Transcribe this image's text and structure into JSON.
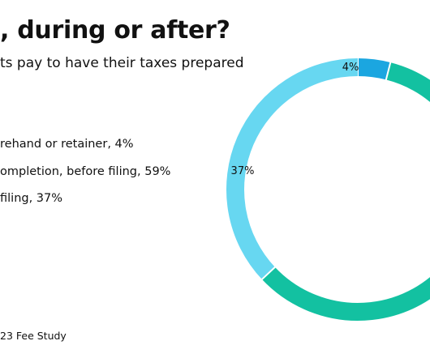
{
  "header": {
    "title": ", during or after?",
    "subtitle": "ts pay to have their taxes prepared"
  },
  "legend": {
    "items": [
      {
        "label": "rehand or retainer, 4%"
      },
      {
        "label": "ompletion, before filing, 59%"
      },
      {
        "label": " filing, 37%"
      }
    ]
  },
  "footer": {
    "source": "23 Fee Study"
  },
  "colors": {
    "slice_beforehand": "#1ba6e0",
    "slice_before_filing": "#13c1a1",
    "slice_after_filing": "#67d7f1"
  },
  "chart_data": {
    "type": "pie",
    "style": "donut",
    "title": ", during or after?",
    "slices": [
      {
        "label": "rehand or retainer",
        "value": 4,
        "display": "4%",
        "color": "#1ba6e0"
      },
      {
        "label": "ompletion, before filing",
        "value": 59,
        "display": "",
        "color": "#13c1a1"
      },
      {
        "label": " filing",
        "value": 37,
        "display": "37%",
        "color": "#67d7f1"
      }
    ]
  }
}
